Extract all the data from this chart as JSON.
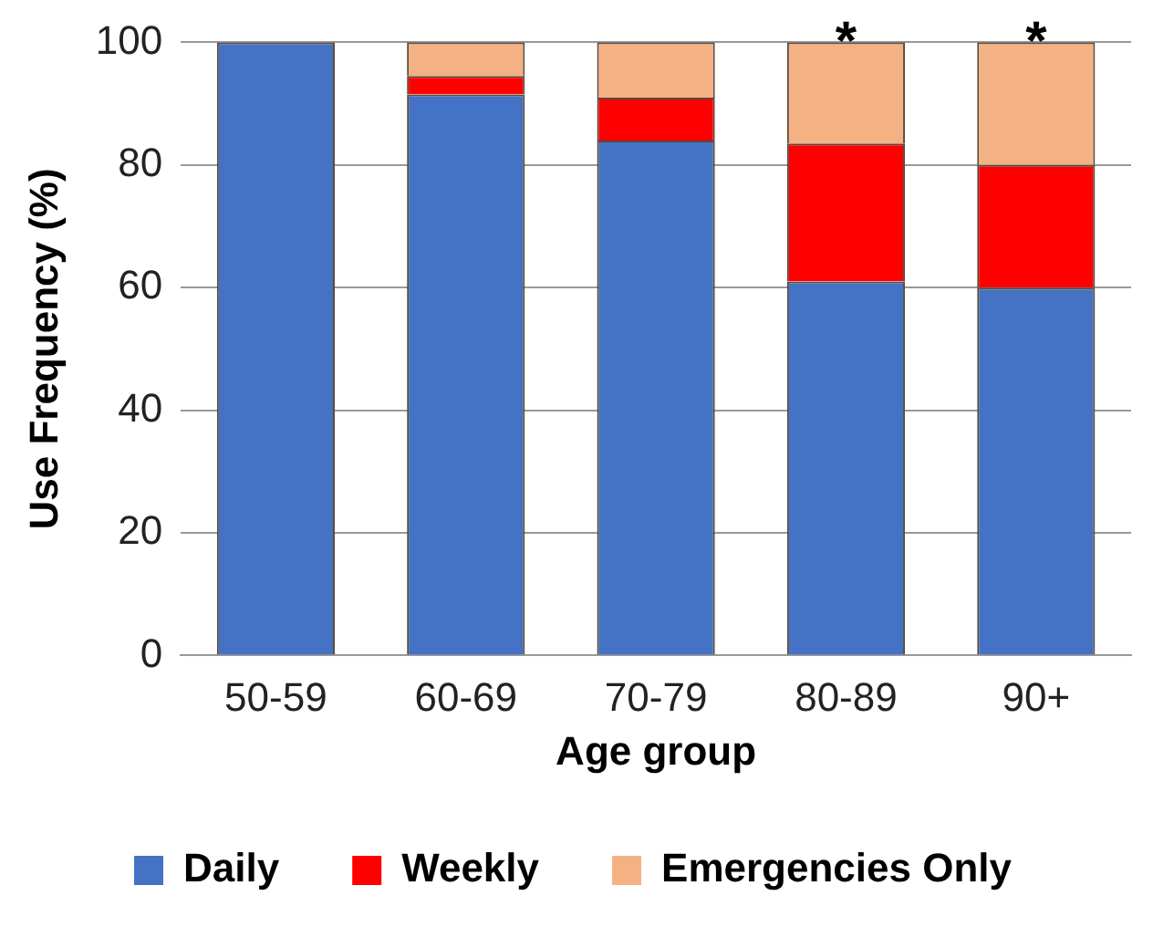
{
  "chart_data": {
    "type": "bar",
    "stacked": true,
    "xlabel": "Age group",
    "ylabel": "Use Frequency (%)",
    "categories": [
      "50-59",
      "60-69",
      "70-79",
      "80-89",
      "90+"
    ],
    "series": [
      {
        "name": "Daily",
        "color": "#4472c4",
        "values": [
          100,
          91.5,
          84,
          61,
          60
        ]
      },
      {
        "name": "Weekly",
        "color": "#ff0000",
        "values": [
          0,
          3,
          7,
          22.5,
          20
        ]
      },
      {
        "name": "Emergencies Only",
        "color": "#f4b183",
        "values": [
          0,
          5.5,
          9,
          16.5,
          20
        ]
      }
    ],
    "ylim": [
      0,
      100
    ],
    "yticks": [
      0,
      20,
      40,
      60,
      80,
      100
    ],
    "grid": "y",
    "legend": "bottom",
    "annotations": [
      {
        "text": "*",
        "x": "80-89",
        "y": 100
      },
      {
        "text": "*",
        "x": "90+",
        "y": 100
      }
    ]
  }
}
